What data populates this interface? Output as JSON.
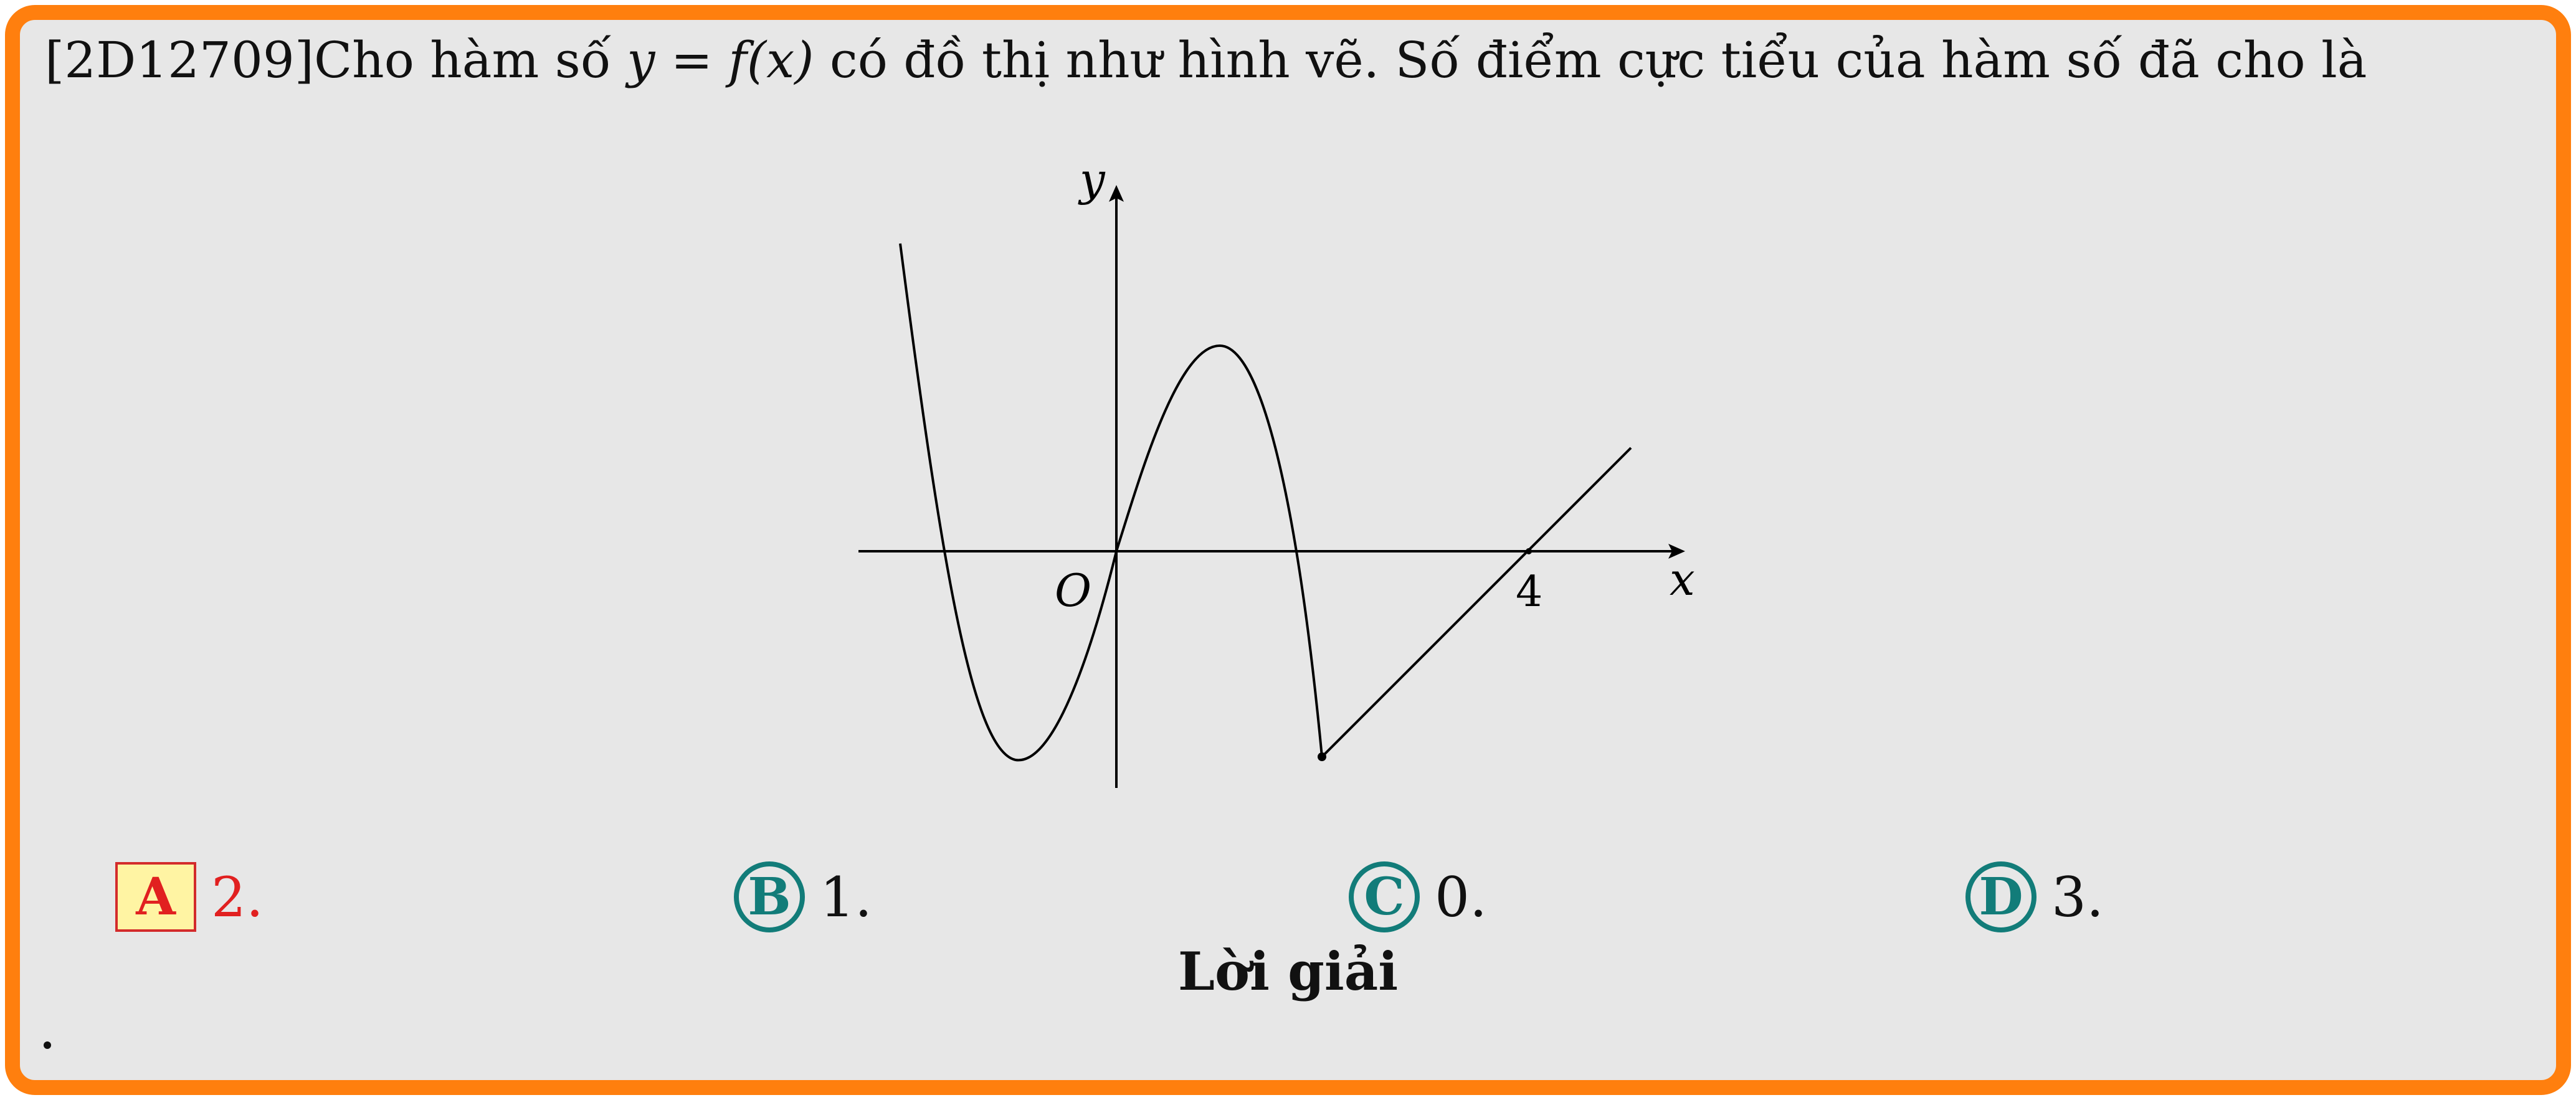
{
  "question": {
    "code": "[2D12709]",
    "text_before": "Cho hàm số ",
    "math": "y = f(x)",
    "text_after": " có đồ thị như hình vẽ. Số điểm cực tiểu của hàm số đã cho là"
  },
  "graph": {
    "y_label": "y",
    "x_label": "x",
    "origin_label": "O",
    "tick_label_4": "4"
  },
  "options": [
    {
      "letter": "A",
      "value": "2.",
      "correct": true
    },
    {
      "letter": "B",
      "value": "1.",
      "correct": false
    },
    {
      "letter": "C",
      "value": "0.",
      "correct": false
    },
    {
      "letter": "D",
      "value": "3.",
      "correct": false
    }
  ],
  "solution": {
    "title": "Lời giải",
    "body": "."
  },
  "colors": {
    "frame": "#ff7f0e",
    "background": "#e7e7e7",
    "option_circle": "#127c79",
    "correct": "#e12020",
    "correct_fill": "#fff4a3"
  }
}
